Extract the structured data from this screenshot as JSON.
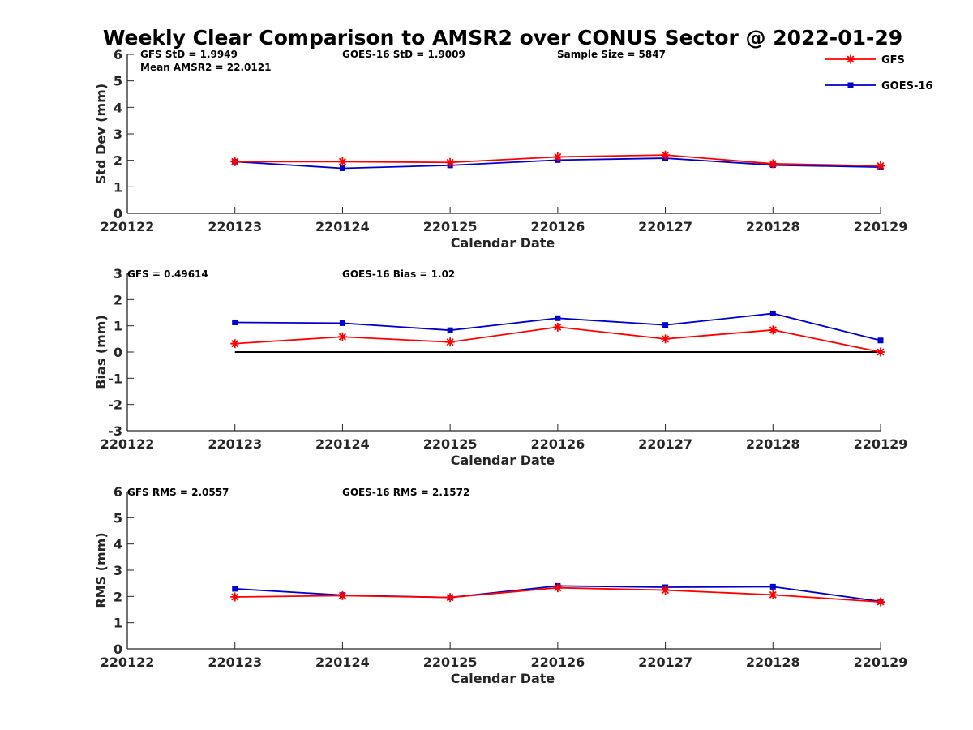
{
  "title": "Weekly Clear Comparison to AMSR2 over CONUS Sector @ 2022-01-29",
  "colors": {
    "gfs": "#ff0000",
    "goes": "#0000cc",
    "zero_line": "#000000",
    "axis": "#262626"
  },
  "legend": {
    "placement": "top-right",
    "entries": [
      {
        "name": "GFS",
        "marker": "asterisk",
        "color": "#ff0000"
      },
      {
        "name": "GOES-16",
        "marker": "square",
        "color": "#0000cc"
      }
    ]
  },
  "stats": {
    "std": [
      "GFS StD = 1.9949",
      "Mean AMSR2 = 22.0121",
      "GOES-16 StD = 1.9009",
      "Sample Size = 5847"
    ],
    "bias": [
      "GFS = 0.49614",
      "GOES-16 Bias  = 1.02"
    ],
    "rms": [
      "GFS RMS = 2.0557",
      "GOES-16 RMS = 2.1572"
    ]
  },
  "chart_data": [
    {
      "type": "line",
      "title": "Weekly Clear Comparison to AMSR2 over CONUS Sector @ 2022-01-29",
      "xlabel": "Calendar Date",
      "ylabel": "Std Dev (mm)",
      "x_tick_labels": [
        "220122",
        "220123",
        "220124",
        "220125",
        "220126",
        "220127",
        "220128",
        "220129"
      ],
      "x": [
        "220123",
        "220124",
        "220125",
        "220126",
        "220127",
        "220128",
        "220129"
      ],
      "ylim": [
        0,
        6
      ],
      "yticks": [
        0,
        1,
        2,
        3,
        4,
        5,
        6
      ],
      "series": [
        {
          "name": "GFS",
          "values": [
            1.95,
            1.95,
            1.92,
            2.13,
            2.2,
            1.87,
            1.79
          ]
        },
        {
          "name": "GOES-16",
          "values": [
            1.95,
            1.7,
            1.81,
            2.01,
            2.08,
            1.82,
            1.74
          ]
        }
      ]
    },
    {
      "type": "line",
      "xlabel": "Calendar Date",
      "ylabel": "Bias (mm)",
      "x_tick_labels": [
        "220122",
        "220123",
        "220124",
        "220125",
        "220126",
        "220127",
        "220128",
        "220129"
      ],
      "x": [
        "220123",
        "220124",
        "220125",
        "220126",
        "220127",
        "220128",
        "220129"
      ],
      "ylim": [
        -3,
        3
      ],
      "yticks": [
        -3,
        -2,
        -1,
        0,
        1,
        2,
        3
      ],
      "reference_line": {
        "y": 0,
        "from": "220123",
        "to": "220129"
      },
      "series": [
        {
          "name": "GFS",
          "values": [
            0.32,
            0.58,
            0.38,
            0.95,
            0.5,
            0.84,
            0.0
          ]
        },
        {
          "name": "GOES-16",
          "values": [
            1.13,
            1.1,
            0.83,
            1.29,
            1.03,
            1.47,
            0.44
          ]
        }
      ]
    },
    {
      "type": "line",
      "xlabel": "Calendar Date",
      "ylabel": "RMS (mm)",
      "x_tick_labels": [
        "220122",
        "220123",
        "220124",
        "220125",
        "220126",
        "220127",
        "220128",
        "220129"
      ],
      "x": [
        "220123",
        "220124",
        "220125",
        "220126",
        "220127",
        "220128",
        "220129"
      ],
      "ylim": [
        0,
        6
      ],
      "yticks": [
        0,
        1,
        2,
        3,
        4,
        5,
        6
      ],
      "series": [
        {
          "name": "GFS",
          "values": [
            1.98,
            2.03,
            1.96,
            2.33,
            2.24,
            2.06,
            1.79
          ]
        },
        {
          "name": "GOES-16",
          "values": [
            2.29,
            2.05,
            1.96,
            2.4,
            2.35,
            2.37,
            1.81
          ]
        }
      ]
    }
  ]
}
